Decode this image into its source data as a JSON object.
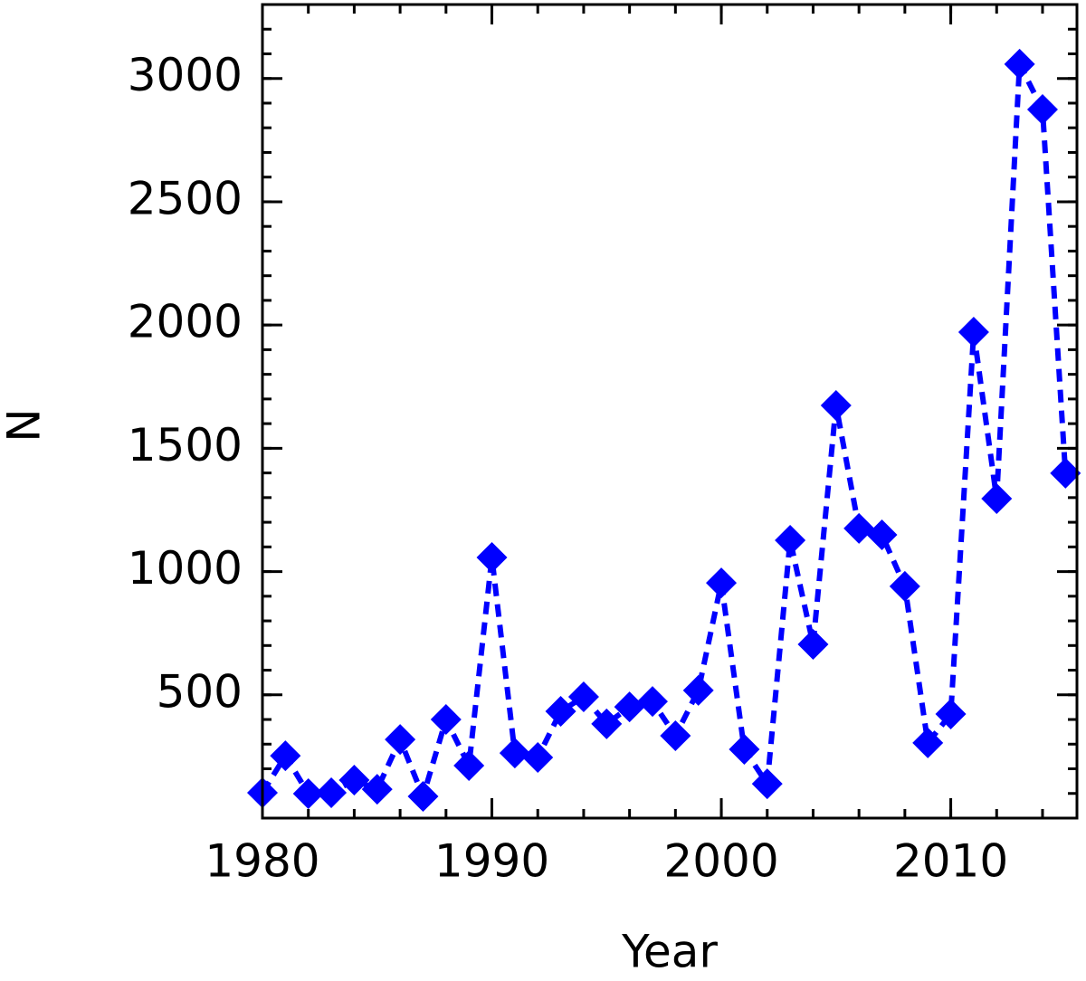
{
  "chart_data": {
    "type": "line",
    "x_label": "Year",
    "y_label": "N",
    "x": [
      1980,
      1981,
      1982,
      1983,
      1984,
      1985,
      1986,
      1987,
      1988,
      1989,
      1990,
      1991,
      1992,
      1993,
      1994,
      1995,
      1996,
      1997,
      1998,
      1999,
      2000,
      2001,
      2002,
      2003,
      2004,
      2005,
      2006,
      2007,
      2008,
      2009,
      2010,
      2011,
      2012,
      2013,
      2014,
      2015
    ],
    "series": [
      {
        "color": "#0000ff",
        "values": [
          103,
          253,
          99,
          103,
          154,
          117,
          319,
          88,
          400,
          213,
          1057,
          264,
          246,
          433,
          492,
          382,
          451,
          473,
          334,
          518,
          954,
          279,
          139,
          1127,
          705,
          1674,
          1175,
          1149,
          940,
          305,
          422,
          1971,
          1296,
          3058,
          2874,
          1399
        ]
      }
    ],
    "xlim": [
      1980,
      2015.5
    ],
    "ylim": [
      0,
      3300
    ],
    "xticks": [
      1980,
      1990,
      2000,
      2010
    ],
    "yticks": [
      500,
      1000,
      1500,
      2000,
      2500,
      3000
    ]
  }
}
